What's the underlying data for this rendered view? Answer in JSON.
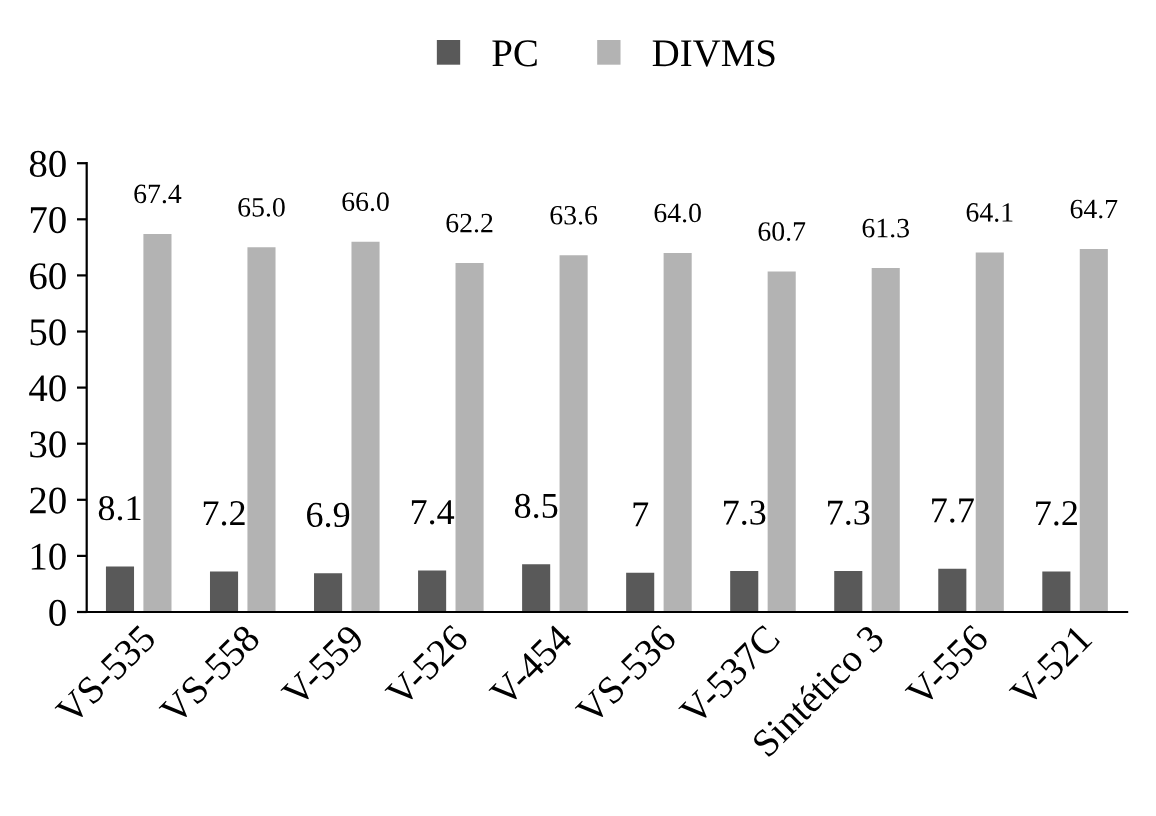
{
  "chart_data": {
    "type": "bar",
    "categories": [
      "VS-535",
      "VS-558",
      "V-559",
      "V-526",
      "V-454",
      "VS-536",
      "V-537C",
      "Sintético 3",
      "V-556",
      "V-521"
    ],
    "series": [
      {
        "name": "PC",
        "color": "#595959",
        "values": [
          8.1,
          7.2,
          6.9,
          7.4,
          8.5,
          7,
          7.3,
          7.3,
          7.7,
          7.2
        ],
        "value_labels": [
          "8.1",
          "7.2",
          "6.9",
          "7.4",
          "8.5",
          "7",
          "7.3",
          "7.3",
          "7.7",
          "7.2"
        ]
      },
      {
        "name": "DIVMS",
        "color": "#b3b3b3",
        "values": [
          67.4,
          65.0,
          66.0,
          62.2,
          63.6,
          64.0,
          60.7,
          61.3,
          64.1,
          64.7
        ],
        "value_labels": [
          "67.4",
          "65.0",
          "66.0",
          "62.2",
          "63.6",
          "64.0",
          "60.7",
          "61.3",
          "64.1",
          "64.7"
        ]
      }
    ],
    "ylim": [
      0,
      80
    ],
    "yticks": [
      0,
      10,
      20,
      30,
      40,
      50,
      60,
      70,
      80
    ],
    "grid": false,
    "legend": "top"
  }
}
